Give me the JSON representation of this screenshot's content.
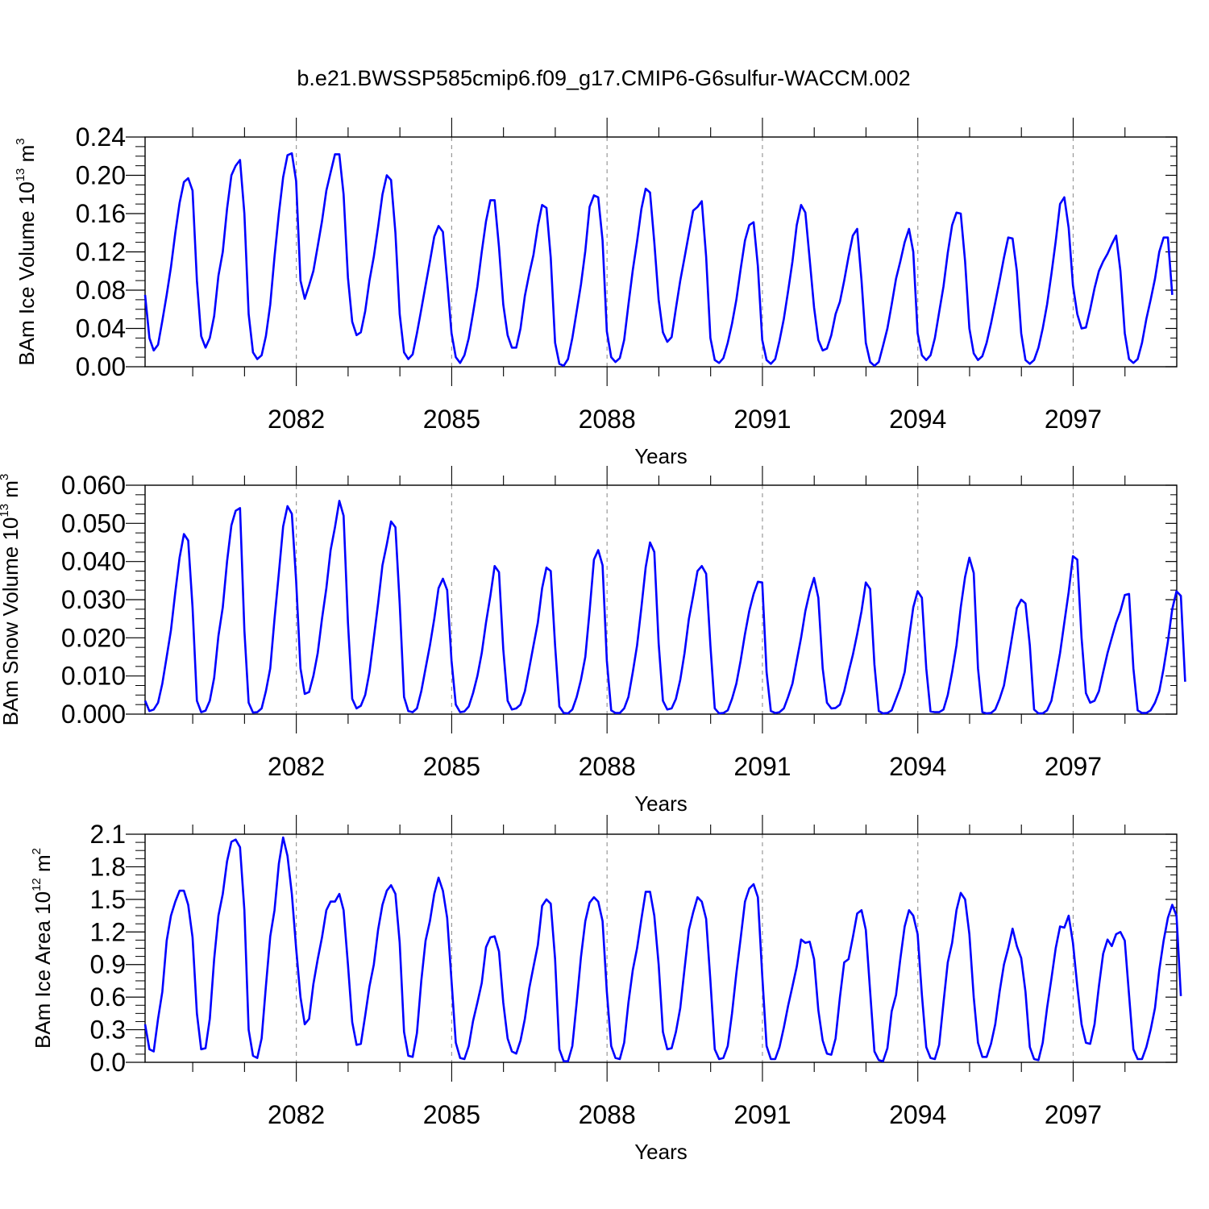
{
  "title": "b.e21.BWSSP585cmip6.f09_g17.CMIP6-G6sulfur-WACCM.002",
  "x_axis": {
    "label": "Years",
    "ticks": [
      "2082",
      "2085",
      "2088",
      "2091",
      "2094",
      "2097"
    ],
    "tick_values": [
      2082,
      2085,
      2088,
      2091,
      2094,
      2097
    ]
  },
  "colors": {
    "line": "#0000ff",
    "axes": "#000000",
    "gridline": "#999999"
  },
  "chart_data": [
    {
      "type": "line",
      "name": "ice-volume",
      "ylabel_parts": [
        "BAm Ice Volume 10",
        "13",
        " m",
        "3"
      ],
      "ylim": [
        0,
        0.24
      ],
      "yticks": [
        "0.00",
        "0.04",
        "0.08",
        "0.12",
        "0.16",
        "0.20",
        "0.24"
      ],
      "ytick_values": [
        0,
        0.04,
        0.08,
        0.12,
        0.16,
        0.2,
        0.24
      ],
      "xlim": [
        2079.08,
        2099.0
      ],
      "x_start": 2079.08,
      "x_step": 0.08333,
      "values": [
        0.075,
        0.03,
        0.017,
        0.023,
        0.048,
        0.075,
        0.104,
        0.14,
        0.171,
        0.193,
        0.197,
        0.184,
        0.09,
        0.032,
        0.02,
        0.03,
        0.053,
        0.095,
        0.12,
        0.165,
        0.2,
        0.21,
        0.216,
        0.16,
        0.055,
        0.015,
        0.008,
        0.012,
        0.032,
        0.065,
        0.115,
        0.16,
        0.198,
        0.221,
        0.223,
        0.194,
        0.09,
        0.071,
        0.085,
        0.1,
        0.126,
        0.152,
        0.184,
        0.203,
        0.222,
        0.222,
        0.18,
        0.093,
        0.047,
        0.033,
        0.036,
        0.058,
        0.09,
        0.115,
        0.146,
        0.18,
        0.2,
        0.195,
        0.14,
        0.055,
        0.015,
        0.008,
        0.013,
        0.035,
        0.06,
        0.085,
        0.11,
        0.136,
        0.147,
        0.141,
        0.09,
        0.035,
        0.01,
        0.004,
        0.012,
        0.03,
        0.056,
        0.084,
        0.12,
        0.152,
        0.174,
        0.174,
        0.125,
        0.065,
        0.033,
        0.02,
        0.02,
        0.04,
        0.074,
        0.097,
        0.117,
        0.147,
        0.169,
        0.166,
        0.114,
        0.025,
        0.003,
        0.001,
        0.008,
        0.03,
        0.058,
        0.086,
        0.121,
        0.167,
        0.179,
        0.177,
        0.132,
        0.037,
        0.01,
        0.005,
        0.009,
        0.028,
        0.065,
        0.101,
        0.131,
        0.165,
        0.186,
        0.182,
        0.13,
        0.07,
        0.036,
        0.026,
        0.031,
        0.061,
        0.09,
        0.114,
        0.139,
        0.163,
        0.167,
        0.173,
        0.115,
        0.03,
        0.007,
        0.004,
        0.009,
        0.025,
        0.045,
        0.07,
        0.102,
        0.132,
        0.148,
        0.151,
        0.105,
        0.028,
        0.007,
        0.003,
        0.008,
        0.027,
        0.05,
        0.079,
        0.11,
        0.148,
        0.169,
        0.161,
        0.112,
        0.062,
        0.028,
        0.017,
        0.019,
        0.033,
        0.055,
        0.068,
        0.09,
        0.115,
        0.137,
        0.144,
        0.09,
        0.025,
        0.005,
        0.001,
        0.005,
        0.022,
        0.04,
        0.065,
        0.092,
        0.11,
        0.13,
        0.144,
        0.12,
        0.035,
        0.012,
        0.007,
        0.012,
        0.03,
        0.057,
        0.084,
        0.119,
        0.148,
        0.161,
        0.16,
        0.11,
        0.04,
        0.014,
        0.007,
        0.011,
        0.025,
        0.045,
        0.067,
        0.09,
        0.114,
        0.135,
        0.134,
        0.1,
        0.035,
        0.007,
        0.003,
        0.007,
        0.02,
        0.04,
        0.065,
        0.097,
        0.131,
        0.17,
        0.177,
        0.145,
        0.085,
        0.055,
        0.04,
        0.041,
        0.06,
        0.082,
        0.1,
        0.11,
        0.118,
        0.128,
        0.137,
        0.1,
        0.035,
        0.008,
        0.004,
        0.008,
        0.025,
        0.05,
        0.07,
        0.092,
        0.12,
        0.135,
        0.135,
        0.075
      ]
    },
    {
      "type": "line",
      "name": "snow-volume",
      "ylabel_parts": [
        "BAm Snow Volume 10",
        "13",
        " m",
        "3"
      ],
      "ylim": [
        0,
        0.06
      ],
      "yticks": [
        "0.000",
        "0.010",
        "0.020",
        "0.030",
        "0.040",
        "0.050",
        "0.060"
      ],
      "ytick_values": [
        0,
        0.01,
        0.02,
        0.03,
        0.04,
        0.05,
        0.06
      ],
      "xlim": [
        2079.08,
        2099.0
      ],
      "x_start": 2079.08,
      "x_step": 0.08333,
      "values": [
        0.0035,
        0.0008,
        0.0012,
        0.003,
        0.008,
        0.015,
        0.022,
        0.032,
        0.041,
        0.0472,
        0.0455,
        0.028,
        0.0035,
        0.0005,
        0.0009,
        0.0035,
        0.0095,
        0.0205,
        0.028,
        0.04,
        0.0495,
        0.0533,
        0.054,
        0.022,
        0.003,
        0.0004,
        0.0005,
        0.0015,
        0.006,
        0.012,
        0.025,
        0.037,
        0.0492,
        0.0545,
        0.0525,
        0.035,
        0.012,
        0.0053,
        0.0058,
        0.01,
        0.016,
        0.025,
        0.033,
        0.043,
        0.049,
        0.0559,
        0.052,
        0.024,
        0.004,
        0.0015,
        0.0022,
        0.005,
        0.011,
        0.02,
        0.029,
        0.039,
        0.0445,
        0.0505,
        0.049,
        0.029,
        0.0045,
        0.0008,
        0.0005,
        0.0015,
        0.006,
        0.012,
        0.018,
        0.025,
        0.033,
        0.0355,
        0.0325,
        0.014,
        0.0025,
        0.0005,
        0.0007,
        0.002,
        0.0055,
        0.01,
        0.016,
        0.024,
        0.031,
        0.0388,
        0.0372,
        0.017,
        0.0035,
        0.0012,
        0.0015,
        0.0025,
        0.006,
        0.012,
        0.018,
        0.024,
        0.033,
        0.0384,
        0.0375,
        0.018,
        0.002,
        0.0003,
        0.0002,
        0.0012,
        0.0045,
        0.009,
        0.015,
        0.027,
        0.0405,
        0.043,
        0.039,
        0.014,
        0.001,
        0.0003,
        0.0003,
        0.0015,
        0.0045,
        0.011,
        0.018,
        0.028,
        0.0385,
        0.045,
        0.0425,
        0.0185,
        0.0035,
        0.0012,
        0.0015,
        0.004,
        0.009,
        0.016,
        0.025,
        0.031,
        0.0375,
        0.0388,
        0.0368,
        0.018,
        0.0015,
        0.0002,
        0.0003,
        0.001,
        0.004,
        0.008,
        0.014,
        0.021,
        0.027,
        0.0315,
        0.0347,
        0.0345,
        0.011,
        0.0008,
        0.0003,
        0.0005,
        0.0015,
        0.0045,
        0.008,
        0.014,
        0.02,
        0.027,
        0.032,
        0.0357,
        0.0305,
        0.012,
        0.003,
        0.0015,
        0.0016,
        0.0025,
        0.006,
        0.011,
        0.0155,
        0.021,
        0.027,
        0.0345,
        0.0328,
        0.013,
        0.0008,
        0.0002,
        0.0003,
        0.001,
        0.004,
        0.007,
        0.011,
        0.02,
        0.028,
        0.0322,
        0.0305,
        0.012,
        0.0007,
        0.0005,
        0.0005,
        0.0012,
        0.005,
        0.011,
        0.018,
        0.028,
        0.036,
        0.041,
        0.037,
        0.012,
        0.0005,
        0.0002,
        0.0003,
        0.0012,
        0.004,
        0.0075,
        0.014,
        0.021,
        0.0278,
        0.03,
        0.029,
        0.018,
        0.0012,
        0.0002,
        0.0002,
        0.001,
        0.0035,
        0.0095,
        0.016,
        0.024,
        0.032,
        0.0414,
        0.0405,
        0.02,
        0.0055,
        0.003,
        0.0035,
        0.006,
        0.011,
        0.016,
        0.02,
        0.024,
        0.027,
        0.0312,
        0.0315,
        0.012,
        0.001,
        0.0003,
        0.0003,
        0.001,
        0.003,
        0.006,
        0.012,
        0.019,
        0.0275,
        0.0322,
        0.031,
        0.0085
      ]
    },
    {
      "type": "line",
      "name": "ice-area",
      "ylabel_parts": [
        "BAm Ice Area 10",
        "12",
        " m",
        "2"
      ],
      "ylim": [
        0,
        2.1
      ],
      "yticks": [
        "0.0",
        "0.3",
        "0.6",
        "0.9",
        "1.2",
        "1.5",
        "1.8",
        "2.1"
      ],
      "ytick_values": [
        0,
        0.3,
        0.6,
        0.9,
        1.2,
        1.5,
        1.8,
        2.1
      ],
      "xlim": [
        2079.08,
        2099.0
      ],
      "x_start": 2079.08,
      "x_step": 0.08333,
      "values": [
        0.35,
        0.12,
        0.1,
        0.4,
        0.65,
        1.12,
        1.35,
        1.48,
        1.58,
        1.58,
        1.45,
        1.15,
        0.45,
        0.12,
        0.13,
        0.4,
        0.95,
        1.35,
        1.55,
        1.85,
        2.03,
        2.05,
        1.98,
        1.4,
        0.3,
        0.06,
        0.04,
        0.22,
        0.7,
        1.16,
        1.4,
        1.83,
        2.07,
        1.9,
        1.55,
        1.05,
        0.6,
        0.35,
        0.4,
        0.72,
        0.95,
        1.15,
        1.4,
        1.48,
        1.48,
        1.55,
        1.4,
        0.9,
        0.37,
        0.16,
        0.17,
        0.43,
        0.7,
        0.9,
        1.22,
        1.45,
        1.58,
        1.63,
        1.55,
        1.1,
        0.28,
        0.06,
        0.05,
        0.27,
        0.75,
        1.12,
        1.3,
        1.55,
        1.7,
        1.58,
        1.33,
        0.75,
        0.18,
        0.04,
        0.03,
        0.15,
        0.38,
        0.55,
        0.73,
        1.06,
        1.15,
        1.16,
        1.02,
        0.55,
        0.22,
        0.1,
        0.08,
        0.2,
        0.4,
        0.68,
        0.88,
        1.08,
        1.44,
        1.5,
        1.46,
        0.95,
        0.12,
        0.01,
        0.01,
        0.15,
        0.55,
        0.97,
        1.3,
        1.47,
        1.52,
        1.48,
        1.3,
        0.65,
        0.15,
        0.04,
        0.03,
        0.18,
        0.55,
        0.85,
        1.05,
        1.32,
        1.57,
        1.57,
        1.35,
        0.9,
        0.28,
        0.12,
        0.13,
        0.28,
        0.5,
        0.86,
        1.22,
        1.38,
        1.52,
        1.48,
        1.32,
        0.75,
        0.12,
        0.03,
        0.04,
        0.15,
        0.45,
        0.82,
        1.14,
        1.48,
        1.6,
        1.64,
        1.52,
        0.8,
        0.15,
        0.03,
        0.03,
        0.14,
        0.32,
        0.52,
        0.7,
        0.88,
        1.13,
        1.1,
        1.11,
        0.95,
        0.48,
        0.2,
        0.08,
        0.07,
        0.22,
        0.6,
        0.92,
        0.95,
        1.15,
        1.37,
        1.4,
        1.22,
        0.65,
        0.1,
        0.02,
        0.01,
        0.13,
        0.47,
        0.62,
        0.95,
        1.25,
        1.4,
        1.35,
        1.18,
        0.62,
        0.14,
        0.04,
        0.03,
        0.16,
        0.55,
        0.92,
        1.1,
        1.4,
        1.56,
        1.5,
        1.18,
        0.6,
        0.18,
        0.05,
        0.05,
        0.17,
        0.35,
        0.65,
        0.9,
        1.05,
        1.23,
        1.07,
        0.96,
        0.65,
        0.14,
        0.03,
        0.02,
        0.18,
        0.5,
        0.77,
        1.05,
        1.25,
        1.24,
        1.35,
        1.1,
        0.7,
        0.35,
        0.18,
        0.17,
        0.35,
        0.7,
        1.0,
        1.13,
        1.07,
        1.18,
        1.2,
        1.12,
        0.62,
        0.12,
        0.03,
        0.03,
        0.14,
        0.3,
        0.5,
        0.85,
        1.12,
        1.33,
        1.45,
        1.35,
        0.61
      ]
    }
  ]
}
